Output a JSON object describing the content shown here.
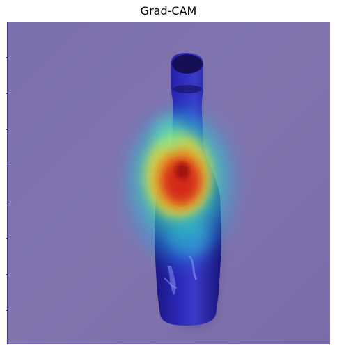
{
  "figure": {
    "title": "Grad-CAM"
  },
  "image": {
    "subject_icon": "bottle-icon",
    "overlay": "heatmap-overlay",
    "colors": {
      "background": "#7f6fab",
      "bottle": "#1f1f9a",
      "heat_hot": "#d21f12",
      "heat_warm": "#f0a020",
      "heat_mid": "#e8e23a",
      "heat_cool": "#3ee6a0",
      "heat_cold": "#2aa6e8"
    }
  }
}
